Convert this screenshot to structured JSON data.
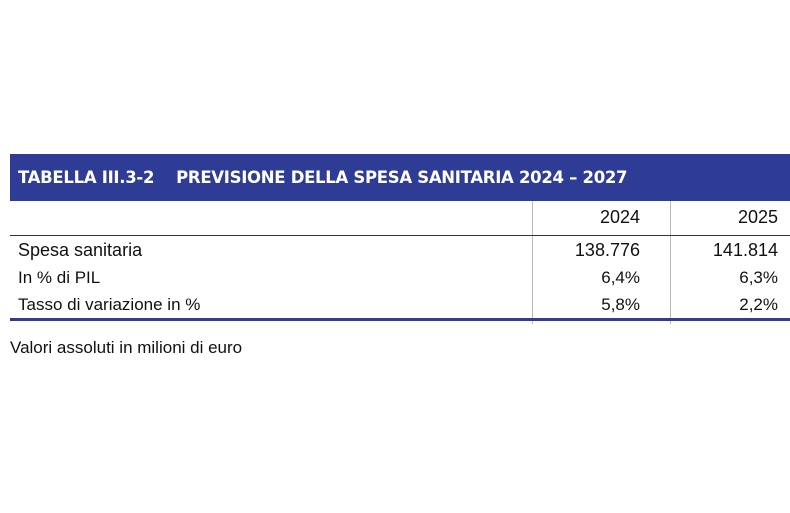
{
  "table": {
    "code": "TABELLA III.3-2",
    "title": "PREVISIONE DELLA SPESA SANITARIA 2024 – 2027",
    "columns": [
      "2024",
      "2025"
    ],
    "rows": [
      {
        "label": "Spesa sanitaria",
        "values": [
          "138.776",
          "141.814"
        ]
      },
      {
        "label": "In % di PIL",
        "values": [
          "6,4%",
          "6,3%"
        ]
      },
      {
        "label": "Tasso di variazione in %",
        "values": [
          "5,8%",
          "2,2%"
        ]
      }
    ],
    "note": "Valori assoluti in milioni di euro"
  },
  "colors": {
    "header_band": "#2f3c96",
    "bottom_rule": "#2f3c96"
  }
}
